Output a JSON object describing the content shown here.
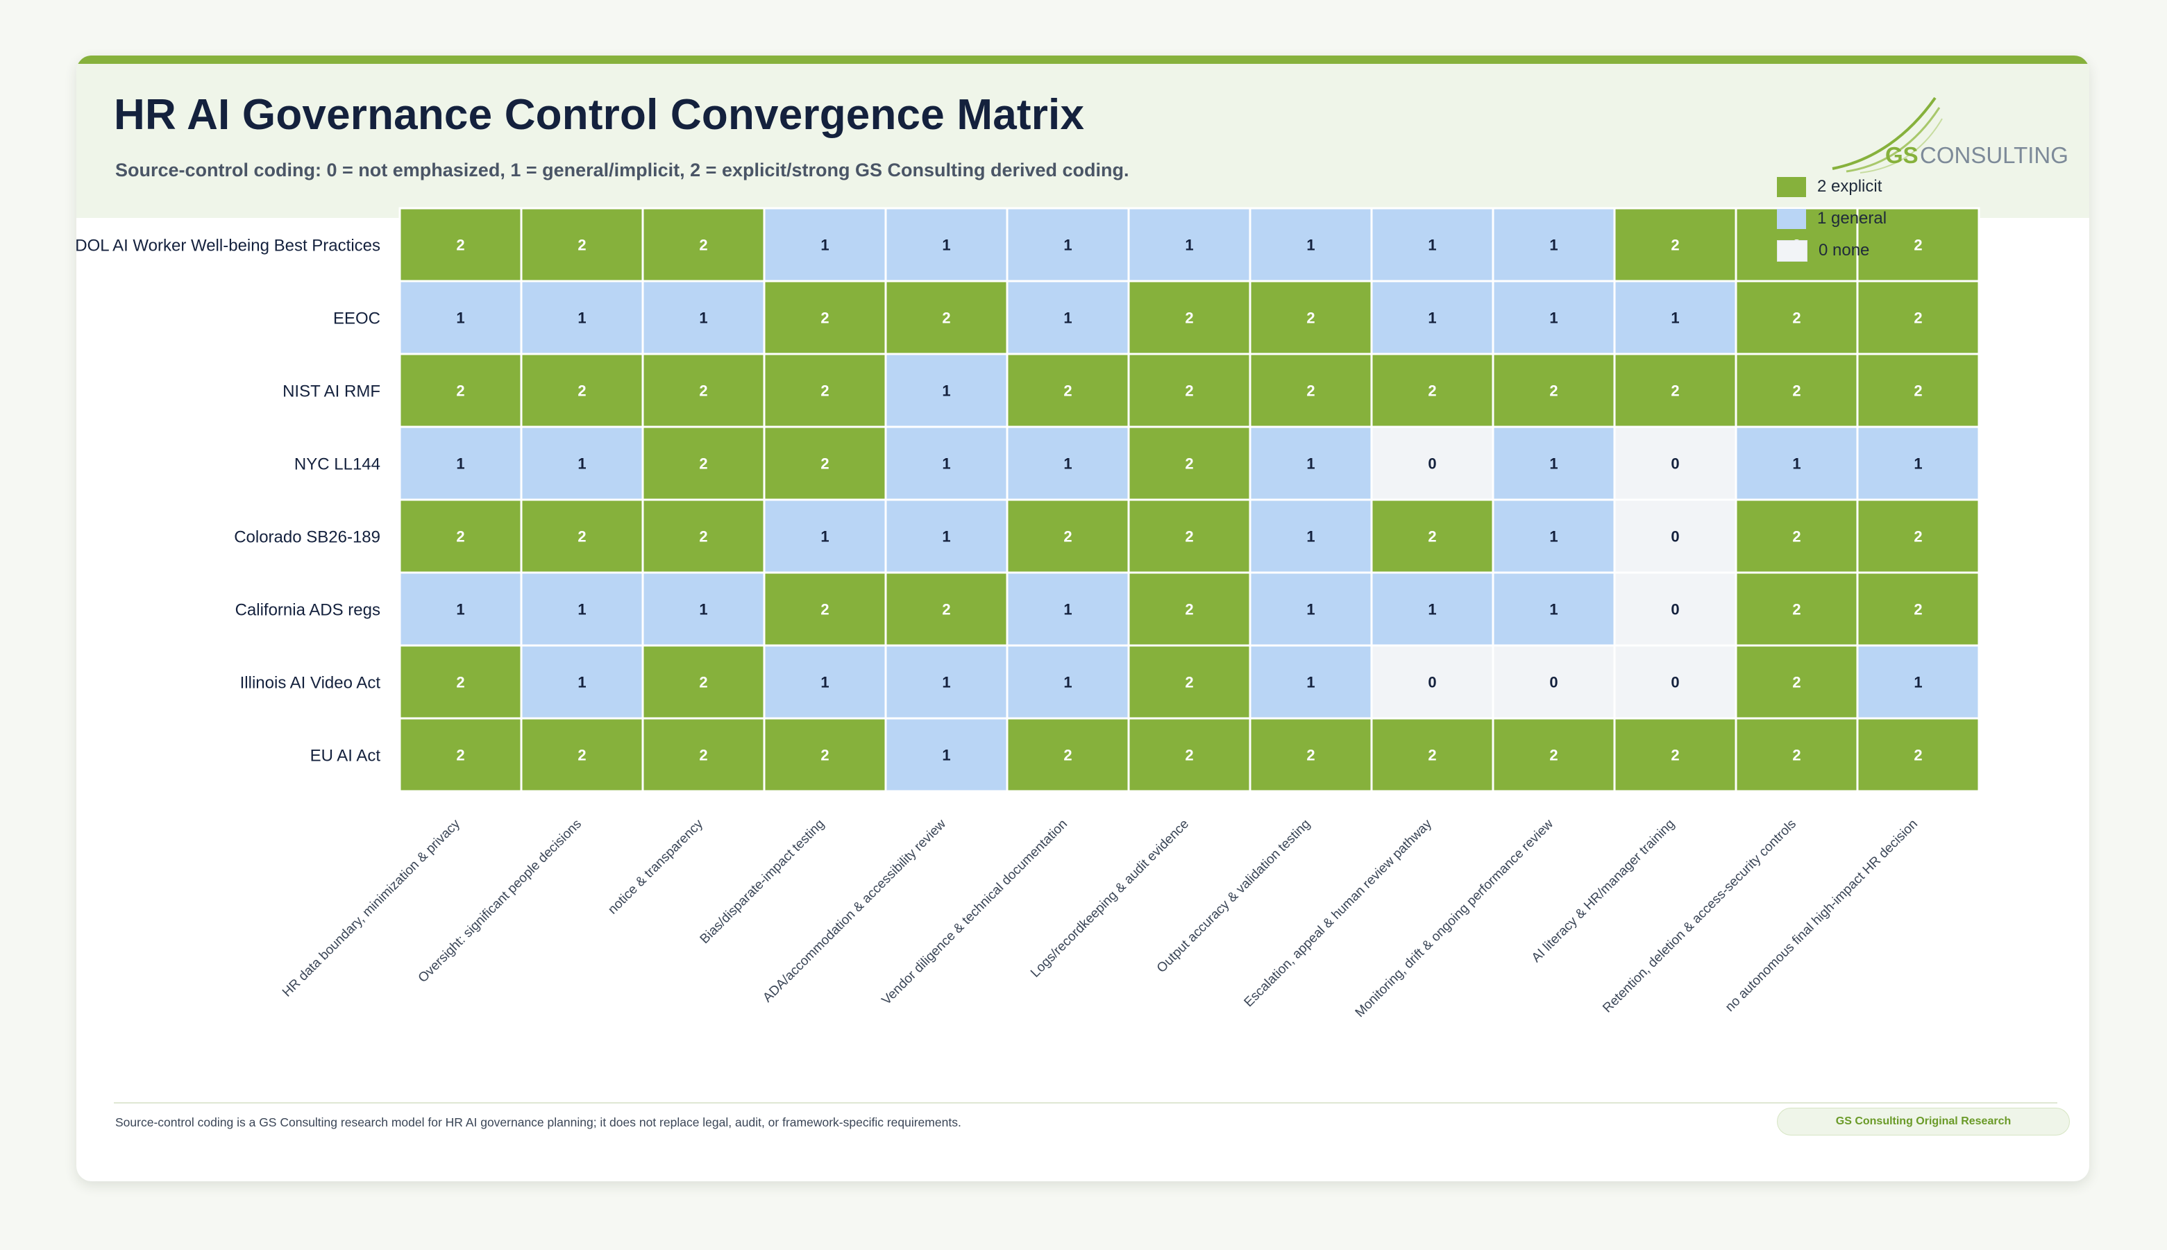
{
  "title": "HR AI Governance Control Convergence Matrix",
  "subtitle": "Source-control coding: 0 = not emphasized, 1 = general/implicit, 2 = explicit/strong GS Consulting derived coding.",
  "logo": {
    "prefix": "GS",
    "suffix": "CONSULTING"
  },
  "legend": [
    {
      "label": "2 explicit",
      "color": "#86b13c"
    },
    {
      "label": "1 general",
      "color": "#b9d5f5"
    },
    {
      "label": "0 none",
      "color": "#f2f4f7"
    }
  ],
  "colors": {
    "accent": "#86b13c",
    "level2": "#86b13c",
    "level1": "#b9d5f5",
    "level0": "#f2f4f7",
    "title": "#14213d"
  },
  "footer": {
    "note": "Source-control coding is a GS Consulting research model for HR AI governance planning; it does not replace legal, audit, or framework-specific requirements.",
    "badge": "GS Consulting Original Research"
  },
  "chart_data": {
    "type": "heatmap",
    "rows": [
      "DOL AI Worker Well-being Best Practices",
      "EEOC",
      "NIST AI RMF",
      "NYC LL144",
      "Colorado SB26-189",
      "California ADS regs",
      "Illinois AI Video Act",
      "EU AI Act"
    ],
    "columns": [
      "HR data boundary, minimization & privacy",
      "Oversight: significant people decisions",
      "notice & transparency",
      "Bias/disparate-impact testing",
      "ADA/accommodation & accessibility review",
      "Vendor diligence & technical documentation",
      "Logs/recordkeeping & audit evidence",
      "Output accuracy & validation testing",
      "Escalation, appeal & human review pathway",
      "Monitoring, drift & ongoing performance review",
      "AI literacy & HR/manager training",
      "Retention, deletion & access-security controls",
      "no autonomous final high-impact HR decision"
    ],
    "values": [
      [
        2,
        2,
        2,
        1,
        1,
        1,
        1,
        1,
        1,
        1,
        2,
        2,
        2
      ],
      [
        1,
        1,
        1,
        2,
        2,
        1,
        2,
        2,
        1,
        1,
        1,
        2,
        2
      ],
      [
        2,
        2,
        2,
        2,
        1,
        2,
        2,
        2,
        2,
        2,
        2,
        2,
        2
      ],
      [
        1,
        1,
        2,
        2,
        1,
        1,
        2,
        1,
        0,
        1,
        0,
        1,
        1
      ],
      [
        2,
        2,
        2,
        1,
        1,
        2,
        2,
        1,
        2,
        1,
        0,
        2,
        2
      ],
      [
        1,
        1,
        1,
        2,
        2,
        1,
        2,
        1,
        1,
        1,
        0,
        2,
        2
      ],
      [
        2,
        1,
        2,
        1,
        1,
        1,
        2,
        1,
        0,
        0,
        0,
        2,
        1
      ],
      [
        2,
        2,
        2,
        2,
        1,
        2,
        2,
        2,
        2,
        2,
        2,
        2,
        2
      ]
    ],
    "scale": [
      0,
      2
    ],
    "legend_position": "top-right"
  }
}
